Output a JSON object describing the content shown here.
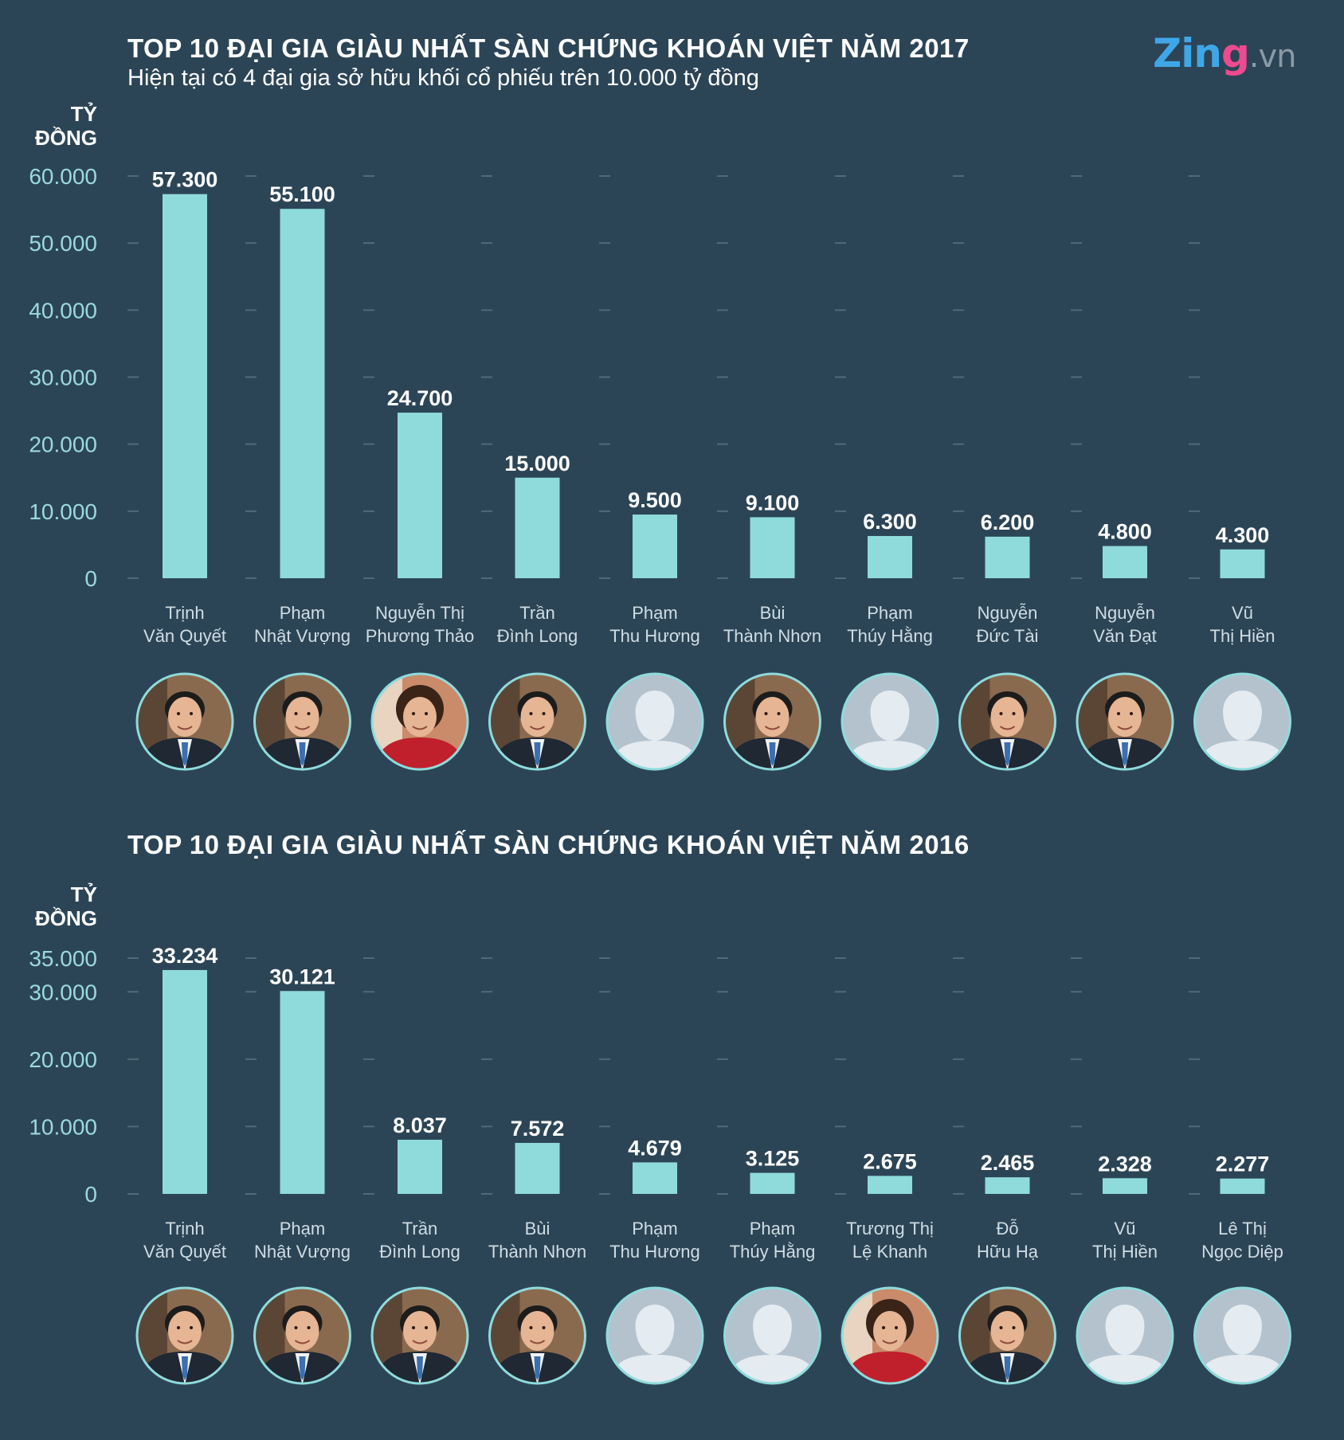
{
  "logo": {
    "brand_main": "Zin",
    "brand_g": "g",
    "tld": ".vn"
  },
  "charts": [
    {
      "id": "chart-2017",
      "title": "TOP 10 ĐẠI GIA GIÀU NHẤT SÀN CHỨNG KHOÁN VIỆT NĂM 2017",
      "subtitle": "Hiện tại có 4 đại gia sở hữu khối cổ phiếu trên 10.000 tỷ đồng",
      "unit_label": [
        "TỶ",
        "ĐỒNG"
      ],
      "chart_data": {
        "type": "bar",
        "title": "TOP 10 ĐẠI GIA GIÀU NHẤT SÀN CHỨNG KHOÁN VIỆT NĂM 2017",
        "ylabel": "TỶ ĐỒNG",
        "ylim": [
          0,
          60000
        ],
        "yticks": [
          0,
          10000,
          20000,
          30000,
          40000,
          50000,
          60000
        ],
        "ytick_labels": [
          "0",
          "10.000",
          "20.000",
          "30.000",
          "40.000",
          "50.000",
          "60.000"
        ],
        "categories": [
          [
            "Trịnh",
            "Văn Quyết"
          ],
          [
            "Phạm",
            "Nhật Vượng"
          ],
          [
            "Nguyễn Thị",
            "Phương Thảo"
          ],
          [
            "Trần",
            "Đình Long"
          ],
          [
            "Phạm",
            "Thu Hương"
          ],
          [
            "Bùi",
            "Thành Nhơn"
          ],
          [
            "Phạm",
            "Thúy Hằng"
          ],
          [
            "Nguyễn",
            "Đức Tài"
          ],
          [
            "Nguyễn",
            "Văn Đạt"
          ],
          [
            "Vũ",
            "Thị Hiền"
          ]
        ],
        "values": [
          57300,
          55100,
          24700,
          15000,
          9500,
          9100,
          6300,
          6200,
          4800,
          4300
        ],
        "value_labels": [
          "57.300",
          "55.100",
          "24.700",
          "15.000",
          "9.500",
          "9.100",
          "6.300",
          "6.200",
          "4.800",
          "4.300"
        ],
        "photos": [
          "man",
          "man",
          "woman",
          "man",
          "placeholder",
          "man",
          "placeholder",
          "man",
          "man",
          "placeholder"
        ]
      }
    },
    {
      "id": "chart-2016",
      "title": "TOP 10 ĐẠI GIA GIÀU NHẤT SÀN CHỨNG KHOÁN VIỆT NĂM 2016",
      "unit_label": [
        "TỶ",
        "ĐỒNG"
      ],
      "chart_data": {
        "type": "bar",
        "title": "TOP 10 ĐẠI GIA GIÀU NHẤT SÀN CHỨNG KHOÁN VIỆT NĂM 2016",
        "ylabel": "TỶ ĐỒNG",
        "ylim": [
          0,
          35000
        ],
        "yticks": [
          0,
          10000,
          20000,
          30000,
          35000
        ],
        "ytick_labels": [
          "0",
          "10.000",
          "20.000",
          "30.000",
          "35.000"
        ],
        "categories": [
          [
            "Trịnh",
            "Văn Quyết"
          ],
          [
            "Phạm",
            "Nhật Vượng"
          ],
          [
            "Trần",
            "Đình Long"
          ],
          [
            "Bùi",
            "Thành Nhơn"
          ],
          [
            "Phạm",
            "Thu Hương"
          ],
          [
            "Phạm",
            "Thúy Hằng"
          ],
          [
            "Trương Thị",
            "Lệ Khanh"
          ],
          [
            "Đỗ",
            "Hữu Hạ"
          ],
          [
            "Vũ",
            "Thị Hiền"
          ],
          [
            "Lê Thị",
            "Ngọc Diệp"
          ]
        ],
        "values": [
          33234,
          30121,
          8037,
          7572,
          4679,
          3125,
          2675,
          2465,
          2328,
          2277
        ],
        "value_labels": [
          "33.234",
          "30.121",
          "8.037",
          "7.572",
          "4.679",
          "3.125",
          "2.675",
          "2.465",
          "2.328",
          "2.277"
        ],
        "photos": [
          "man",
          "man",
          "man",
          "man",
          "placeholder",
          "placeholder",
          "woman",
          "man",
          "placeholder",
          "placeholder"
        ]
      }
    }
  ],
  "colors": {
    "background": "#2c4556",
    "bar": "#8fdbdc",
    "grid": "#4f6a78",
    "tick": "#9ad9e0",
    "avatar_ring": "#8fdbdc",
    "placeholder_bg": "#b4c2ce",
    "placeholder_fg": "#e4ebf1"
  }
}
